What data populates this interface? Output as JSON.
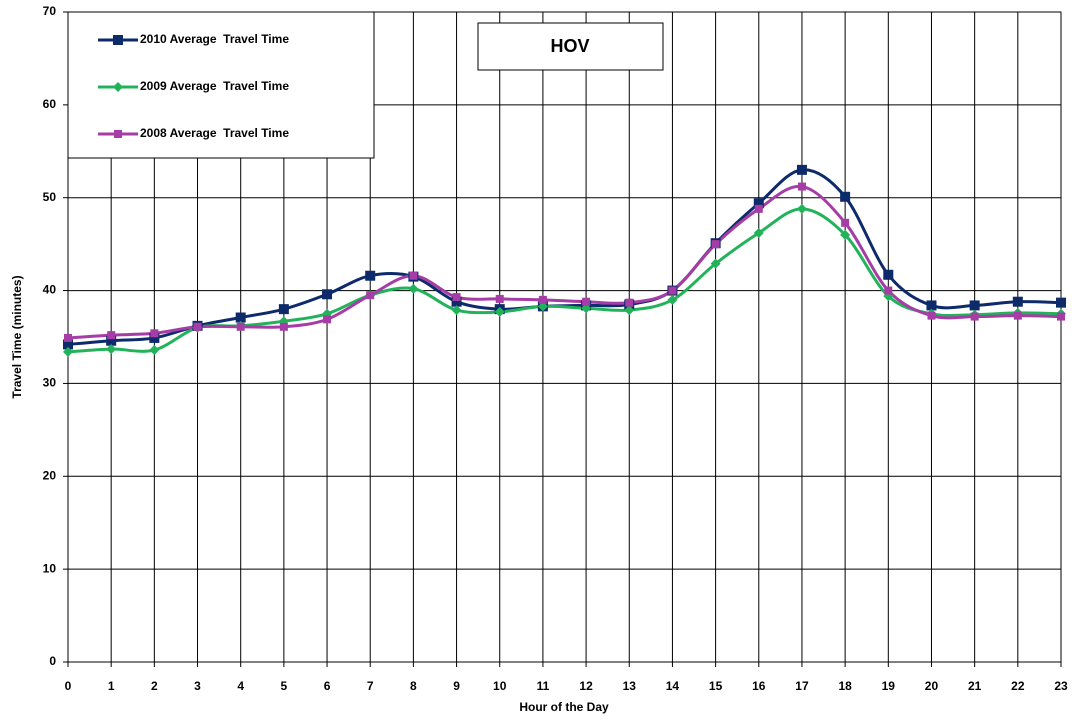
{
  "chart_data": {
    "type": "line",
    "annotation": "HOV",
    "xlabel": "Hour of the Day",
    "ylabel": "Travel Time (minutes)",
    "x": [
      0,
      1,
      2,
      3,
      4,
      5,
      6,
      7,
      8,
      9,
      10,
      11,
      12,
      13,
      14,
      15,
      16,
      17,
      18,
      19,
      20,
      21,
      22,
      23
    ],
    "xlim": [
      0,
      23
    ],
    "xticks": [
      0,
      1,
      2,
      3,
      4,
      5,
      6,
      7,
      8,
      9,
      10,
      11,
      12,
      13,
      14,
      15,
      16,
      17,
      18,
      19,
      20,
      21,
      22,
      23
    ],
    "ylim": [
      0,
      70
    ],
    "yticks": [
      0,
      10,
      20,
      30,
      40,
      50,
      60,
      70
    ],
    "grid": true,
    "smooth": true,
    "legend": "upper left",
    "series": [
      {
        "name": "2010 Average  Travel Time",
        "color": "#0d2a6b",
        "marker": "square",
        "values": [
          34.2,
          34.6,
          34.9,
          36.2,
          37.1,
          38.0,
          39.6,
          41.6,
          41.5,
          38.8,
          38.0,
          38.3,
          38.4,
          38.5,
          40.0,
          45.1,
          49.4,
          53.0,
          50.1,
          41.7,
          38.4,
          38.4,
          38.8,
          38.7
        ]
      },
      {
        "name": "2009 Average  Travel Time",
        "color": "#22b35a",
        "marker": "diamond",
        "values": [
          33.4,
          33.7,
          33.6,
          36.0,
          36.2,
          36.7,
          37.5,
          39.5,
          40.2,
          37.9,
          37.7,
          38.3,
          38.1,
          37.9,
          39.0,
          42.9,
          46.2,
          48.8,
          46.0,
          39.4,
          37.5,
          37.4,
          37.6,
          37.5
        ]
      },
      {
        "name": "2008 Average  Travel Time",
        "color": "#a63ca6",
        "marker": "square",
        "values": [
          34.9,
          35.2,
          35.4,
          36.1,
          36.1,
          36.1,
          36.9,
          39.5,
          41.6,
          39.3,
          39.1,
          39.0,
          38.8,
          38.7,
          40.0,
          45.0,
          48.8,
          51.2,
          47.3,
          40.0,
          37.3,
          37.2,
          37.3,
          37.2
        ]
      }
    ]
  }
}
